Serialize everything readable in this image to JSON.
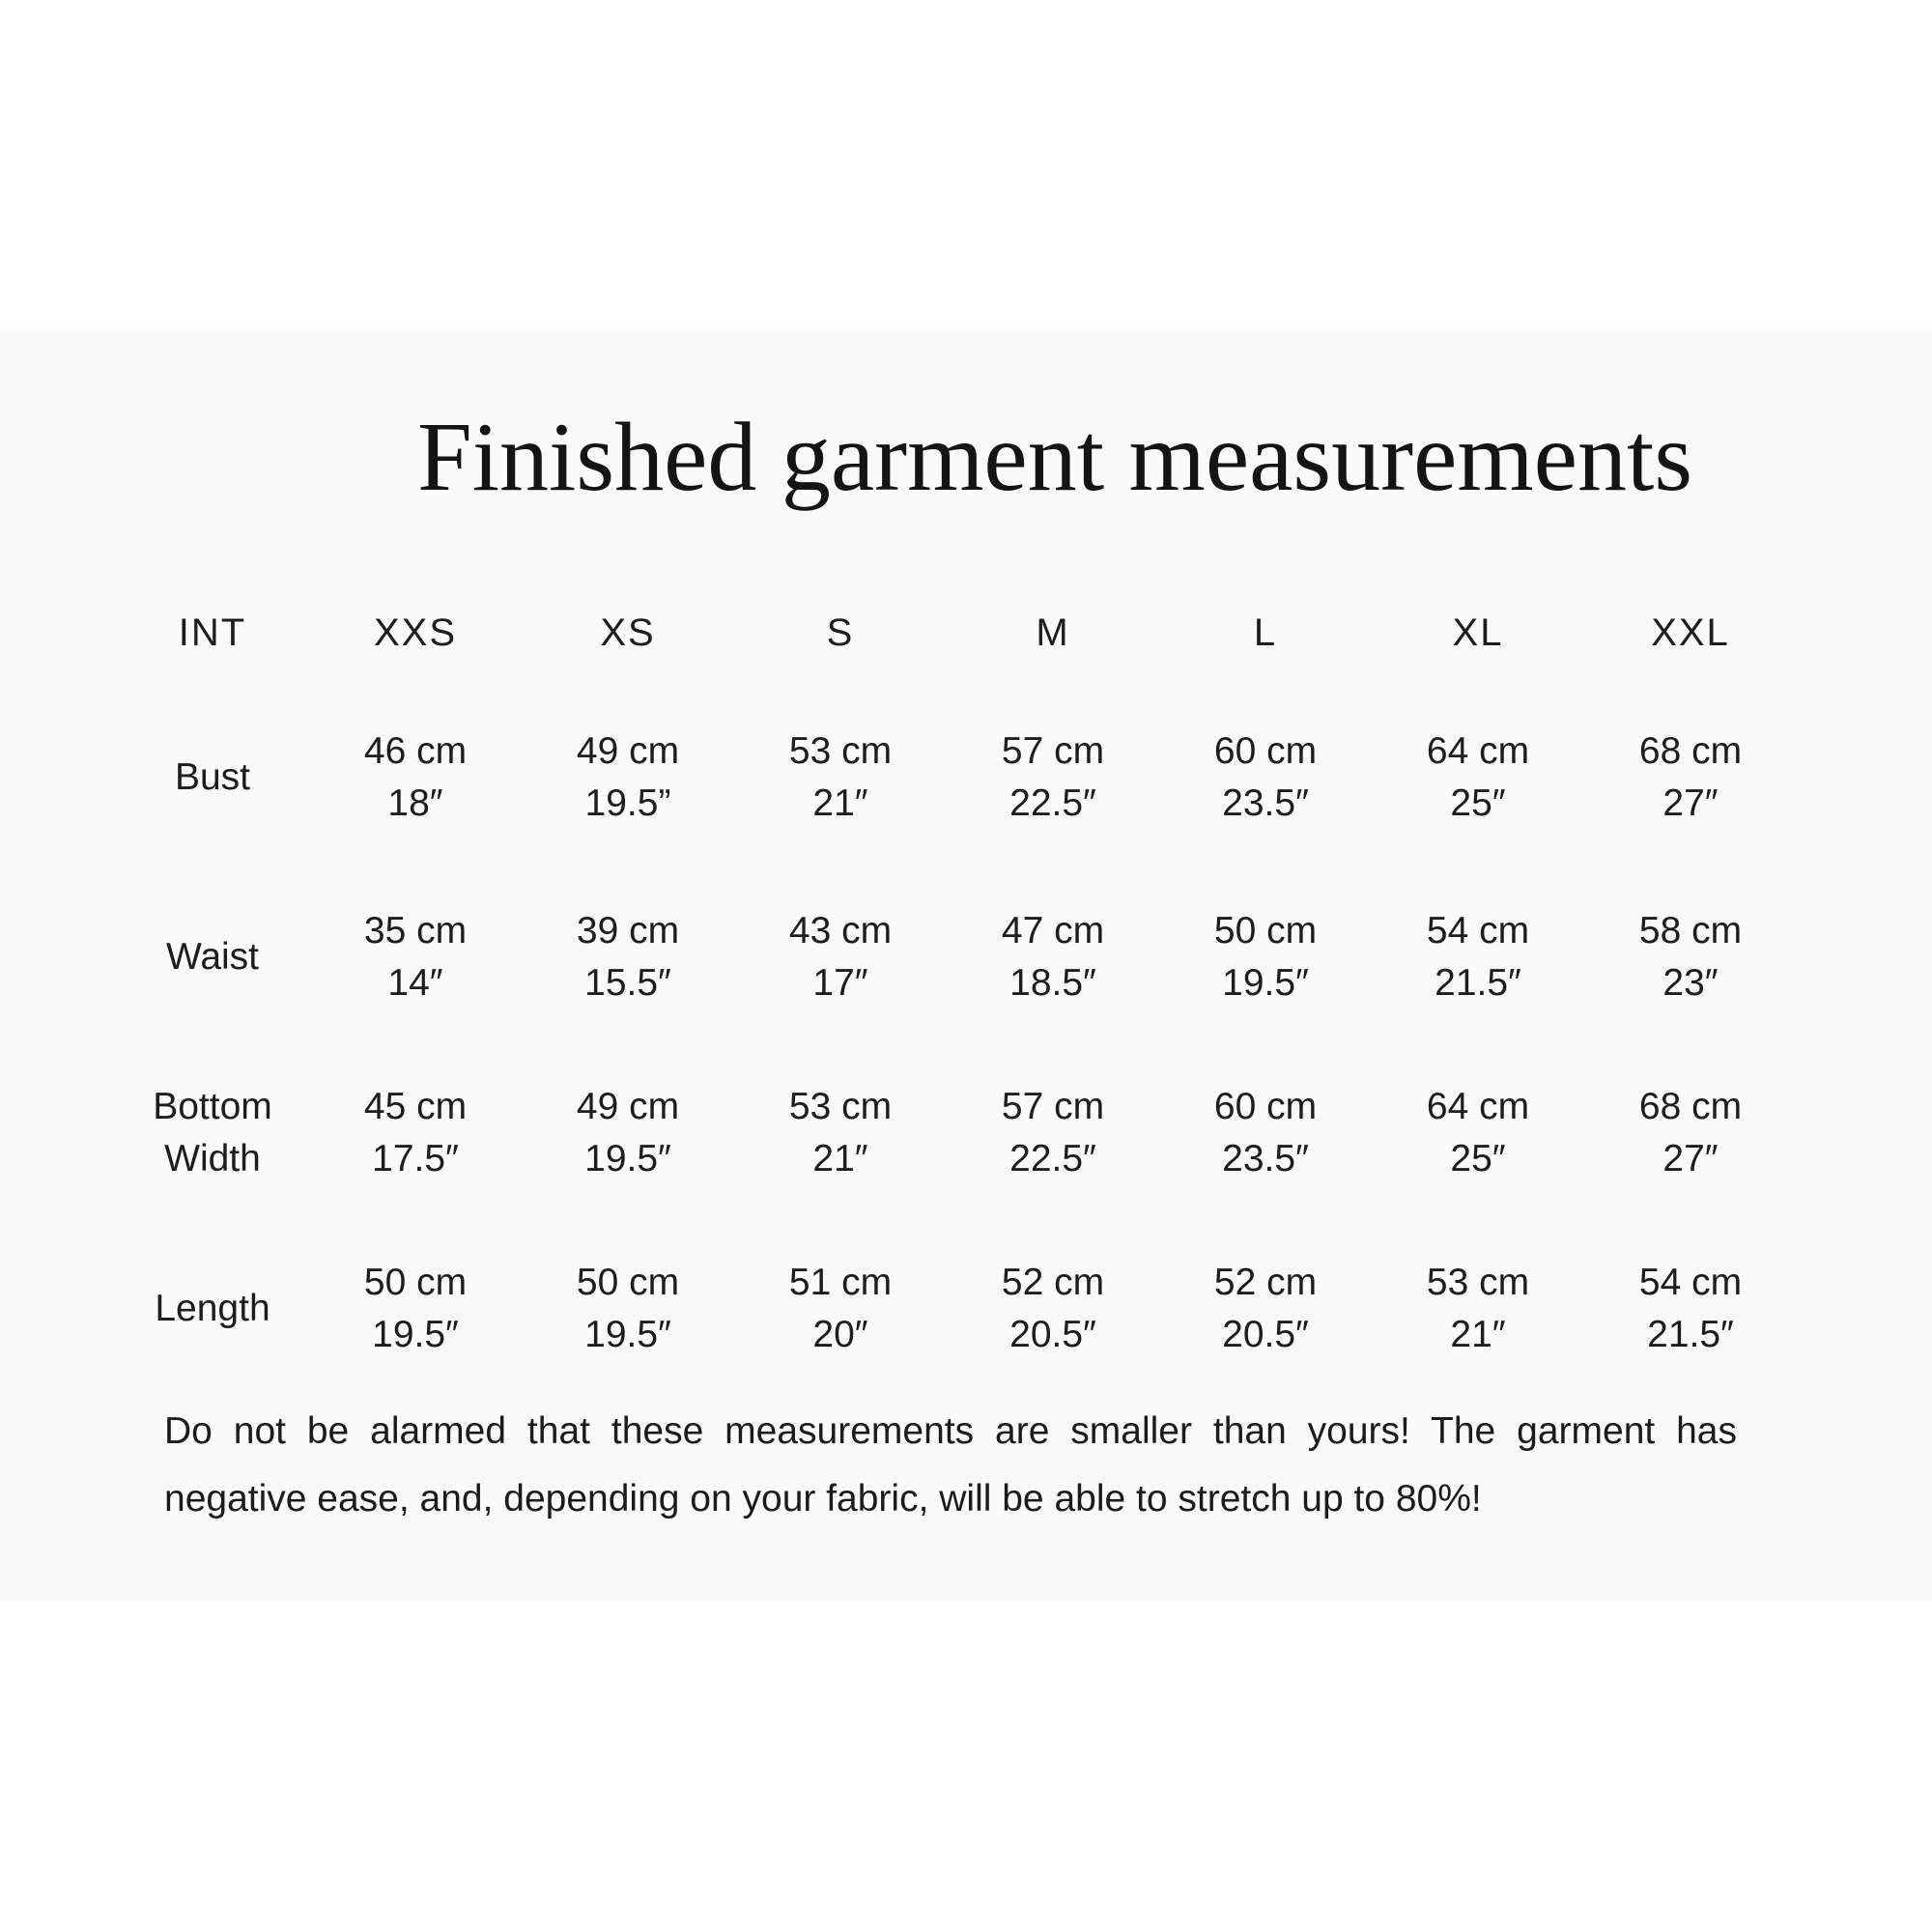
{
  "page": {
    "title": "Finished garment measurements"
  },
  "table": {
    "unit_header": "INT",
    "size_headers": [
      "XXS",
      "XS",
      "S",
      "M",
      "L",
      "XL",
      "XXL"
    ],
    "rows": [
      {
        "label": "Bust",
        "cells": [
          {
            "cm": "46 cm",
            "inch": "18″"
          },
          {
            "cm": "49 cm",
            "inch": "19.5”"
          },
          {
            "cm": "53 cm",
            "inch": "21″"
          },
          {
            "cm": "57 cm",
            "inch": "22.5″"
          },
          {
            "cm": "60 cm",
            "inch": "23.5″"
          },
          {
            "cm": "64 cm",
            "inch": "25″"
          },
          {
            "cm": "68 cm",
            "inch": "27″"
          }
        ]
      },
      {
        "label": "Waist",
        "cells": [
          {
            "cm": "35 cm",
            "inch": "14″"
          },
          {
            "cm": "39 cm",
            "inch": "15.5″"
          },
          {
            "cm": "43 cm",
            "inch": "17″"
          },
          {
            "cm": "47 cm",
            "inch": "18.5″"
          },
          {
            "cm": "50 cm",
            "inch": "19.5″"
          },
          {
            "cm": "54 cm",
            "inch": "21.5″"
          },
          {
            "cm": "58 cm",
            "inch": "23″"
          }
        ]
      },
      {
        "label": "Bottom Width",
        "cells": [
          {
            "cm": "45 cm",
            "inch": "17.5″"
          },
          {
            "cm": "49 cm",
            "inch": "19.5″"
          },
          {
            "cm": "53 cm",
            "inch": "21″"
          },
          {
            "cm": "57 cm",
            "inch": "22.5″"
          },
          {
            "cm": "60 cm",
            "inch": "23.5″"
          },
          {
            "cm": "64 cm",
            "inch": "25″"
          },
          {
            "cm": "68 cm",
            "inch": "27″"
          }
        ]
      },
      {
        "label": "Length",
        "cells": [
          {
            "cm": "50 cm",
            "inch": "19.5″"
          },
          {
            "cm": "50 cm",
            "inch": "19.5″"
          },
          {
            "cm": "51 cm",
            "inch": "20″"
          },
          {
            "cm": "52 cm",
            "inch": "20.5″"
          },
          {
            "cm": "52 cm",
            "inch": "20.5″"
          },
          {
            "cm": "53 cm",
            "inch": "21″"
          },
          {
            "cm": "54 cm",
            "inch": "21.5″"
          }
        ]
      }
    ]
  },
  "note": {
    "line1": "Do not be alarmed that these measurements are smaller than yours! The garment has",
    "line2": "negative ease, and, depending on your fabric, will be able to stretch up to 80%!"
  },
  "colors": {
    "background": "#ffffff",
    "card_background": "#fafafa",
    "text": "#1d1d1d"
  }
}
